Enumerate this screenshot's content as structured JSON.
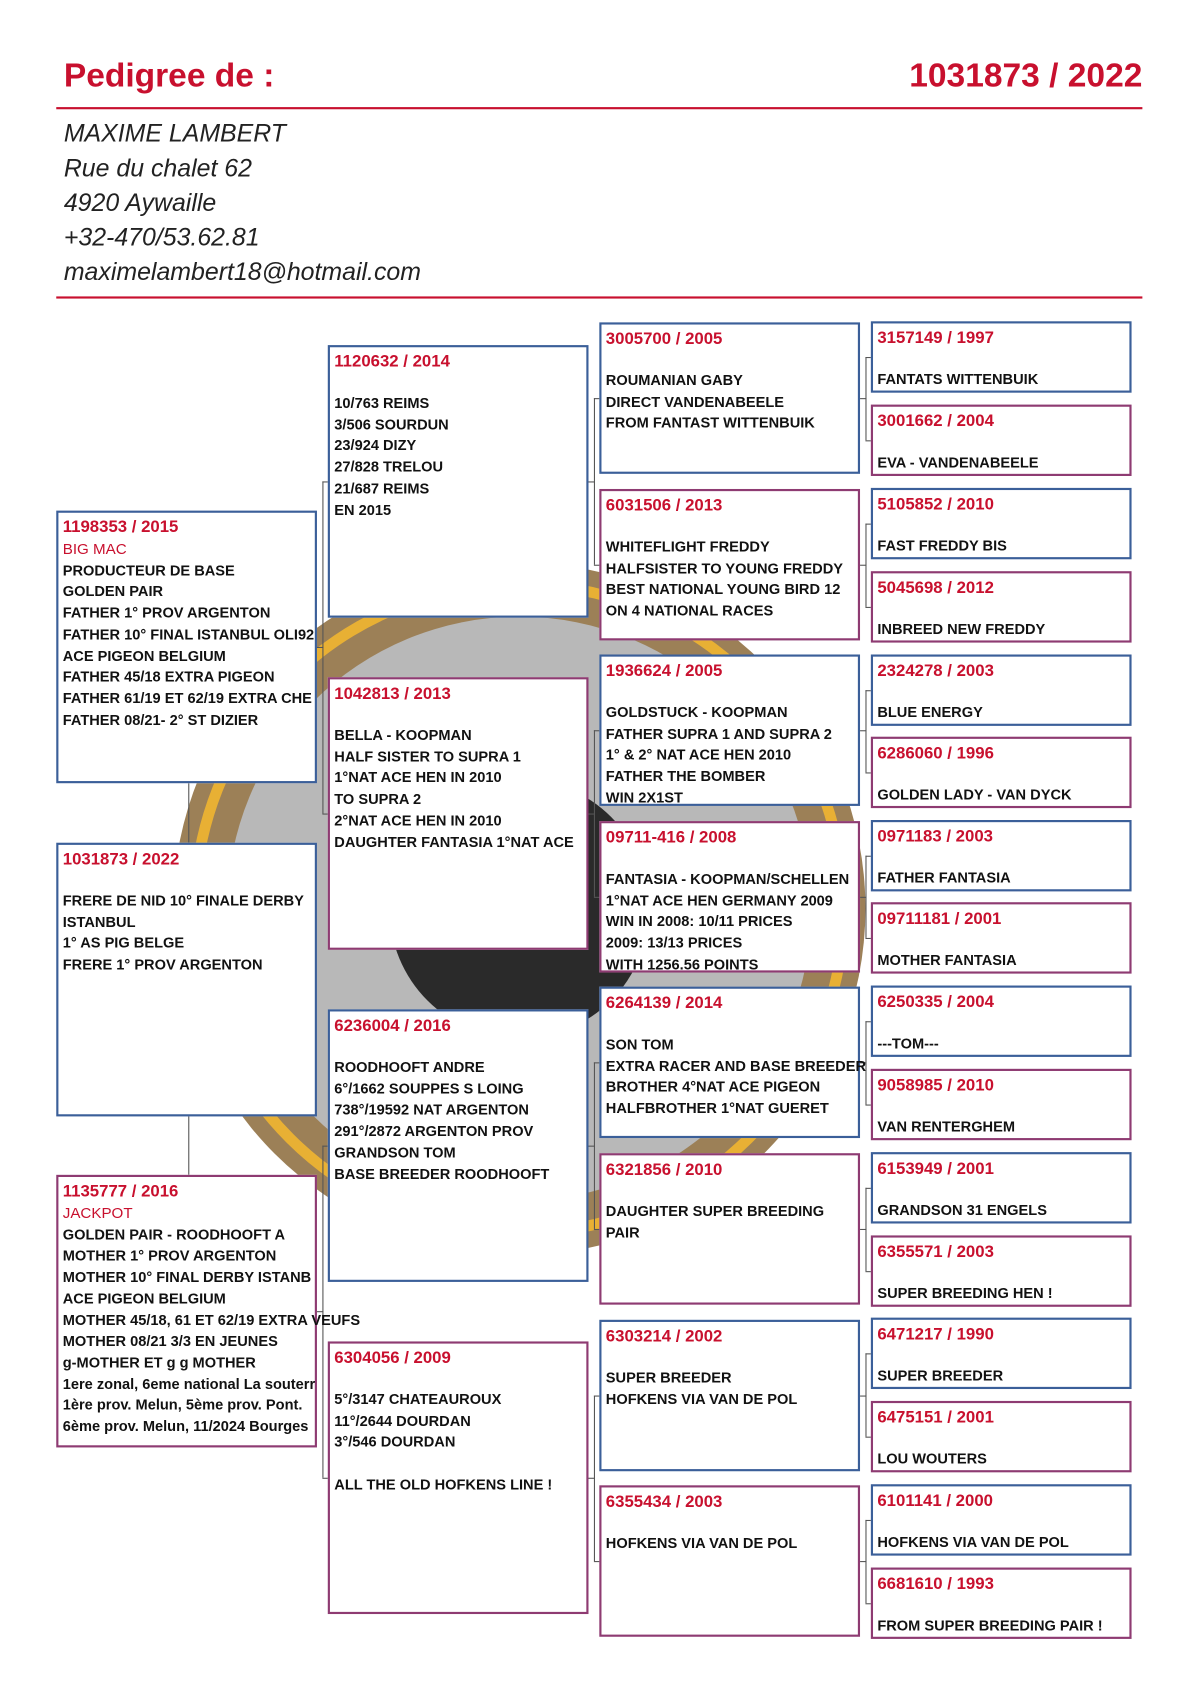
{
  "header": {
    "title": "Pedigree de :",
    "ring": "1031873 / 2022"
  },
  "owner": [
    "MAXIME LAMBERT",
    "Rue du chalet 62",
    "4920 Aywaille",
    "+32-470/53.62.81",
    "maximelambert18@hotmail.com"
  ],
  "pedigree": [
    {
      "ring": "1198353 / 2015",
      "name": "BIG MAC",
      "lines": [
        "PRODUCTEUR DE BASE",
        "GOLDEN PAIR",
        "FATHER 1° PROV ARGENTON",
        "FATHER 10° FINAL ISTANBUL OLI92",
        "ACE PIGEON BELGIUM",
        "FATHER 45/18 EXTRA PIGEON",
        "FATHER 61/19 ET 62/19 EXTRA CHE",
        "FATHER 08/21- 2° ST DIZIER"
      ]
    },
    {
      "ring": "1031873 / 2022",
      "lines": [
        "FRERE DE NID 10° FINALE DERBY",
        "ISTANBUL",
        "1° AS PIG BELGE",
        "FRERE 1° PROV ARGENTON"
      ]
    },
    {
      "ring": "1135777 / 2016",
      "name": "JACKPOT",
      "lines": [
        "GOLDEN PAIR - ROODHOOFT A",
        "MOTHER 1° PROV ARGENTON",
        "MOTHER 10° FINAL DERBY ISTANB",
        "ACE PIGEON BELGIUM",
        "MOTHER 45/18, 61 ET 62/19 EXTRA VEUFS",
        "MOTHER 08/21 3/3 EN JEUNES",
        "g-MOTHER ET g g MOTHER",
        "1ere zonal, 6eme national La souterr",
        "1ère prov. Melun, 5ème prov. Pont.",
        "6ème prov. Melun, 11/2024 Bourges"
      ]
    },
    {
      "ring": "1120632 / 2014",
      "lines": [
        "10/763 REIMS",
        "3/506 SOURDUN",
        "23/924 DIZY",
        "27/828 TRELOU",
        "21/687 REIMS",
        "EN 2015"
      ]
    },
    {
      "ring": "1042813 / 2013",
      "lines": [
        "BELLA - KOOPMAN",
        "HALF SISTER TO SUPRA 1",
        "1°NAT ACE HEN IN 2010",
        "TO SUPRA 2",
        "2°NAT ACE HEN IN 2010",
        "DAUGHTER FANTASIA 1°NAT ACE"
      ]
    },
    {
      "ring": "6236004 / 2016",
      "lines": [
        "ROODHOOFT ANDRE",
        "6°/1662 SOUPPES S LOING",
        "738°/19592 NAT ARGENTON",
        "291°/2872 ARGENTON PROV",
        "GRANDSON TOM",
        "BASE BREEDER ROODHOOFT"
      ]
    },
    {
      "ring": "6304056 / 2009",
      "lines": [
        "5°/3147 CHATEAUROUX",
        "11°/2644 DOURDAN",
        "3°/546 DOURDAN"
      ],
      "note": "ALL THE OLD HOFKENS LINE !"
    },
    {
      "ring": "3005700 / 2005",
      "lines": [
        "ROUMANIAN GABY",
        "DIRECT VANDENABEELE",
        "FROM FANTAST WITTENBUIK"
      ]
    },
    {
      "ring": "6031506 / 2013",
      "lines": [
        "WHITEFLIGHT FREDDY",
        "HALFSISTER TO YOUNG FREDDY",
        "BEST NATIONAL YOUNG BIRD 12",
        "ON 4 NATIONAL RACES"
      ]
    },
    {
      "ring": "1936624 / 2005",
      "lines": [
        "GOLDSTUCK - KOOPMAN",
        "FATHER SUPRA 1 AND SUPRA 2",
        "1° & 2° NAT ACE HEN 2010",
        "FATHER THE BOMBER",
        "WIN 2X1ST"
      ]
    },
    {
      "ring": "09711-416 / 2008",
      "lines": [
        "FANTASIA - KOOPMAN/SCHELLEN",
        "1°NAT ACE HEN GERMANY 2009",
        "WIN IN 2008: 10/11 PRICES",
        "2009: 13/13 PRICES",
        "WITH 1256.56 POINTS"
      ]
    },
    {
      "ring": "6264139 / 2014",
      "lines": [
        "SON TOM",
        "EXTRA RACER AND BASE BREEDER",
        "BROTHER 4°NAT ACE PIGEON",
        "HALFBROTHER 1°NAT GUERET"
      ]
    },
    {
      "ring": "6321856 / 2010",
      "lines": [
        "DAUGHTER SUPER BREEDING",
        "PAIR"
      ]
    },
    {
      "ring": "6303214 / 2002",
      "lines": [
        "SUPER BREEDER",
        "HOFKENS VIA VAN DE POL"
      ]
    },
    {
      "ring": "6355434 / 2003",
      "lines": [
        "HOFKENS VIA VAN DE POL"
      ]
    },
    {
      "ring": "3157149 / 1997",
      "lines": [
        "FANTATS WITTENBUIK"
      ]
    },
    {
      "ring": "3001662 / 2004",
      "lines": [
        "EVA - VANDENABEELE"
      ]
    },
    {
      "ring": "5105852 / 2010",
      "lines": [
        "FAST FREDDY BIS"
      ]
    },
    {
      "ring": "5045698 / 2012",
      "lines": [
        "INBREED NEW FREDDY"
      ]
    },
    {
      "ring": "2324278 / 2003",
      "lines": [
        "BLUE ENERGY"
      ]
    },
    {
      "ring": "6286060 / 1996",
      "lines": [
        "GOLDEN LADY - VAN DYCK"
      ]
    },
    {
      "ring": "0971183 / 2003",
      "lines": [
        "FATHER FANTASIA"
      ]
    },
    {
      "ring": "09711181 / 2001",
      "lines": [
        "MOTHER FANTASIA"
      ]
    },
    {
      "ring": "6250335 / 2004",
      "lines": [
        "---TOM---"
      ]
    },
    {
      "ring": "9058985 / 2010",
      "lines": [
        "VAN RENTERGHEM"
      ]
    },
    {
      "ring": "6153949 / 2001",
      "lines": [
        "GRANDSON 31 ENGELS"
      ]
    },
    {
      "ring": "6355571 / 2003",
      "lines": [
        "SUPER BREEDING HEN !"
      ]
    },
    {
      "ring": "6471217 / 1990",
      "lines": [
        "SUPER BREEDER"
      ]
    },
    {
      "ring": "6475151 / 2001",
      "lines": [
        "LOU WOUTERS"
      ]
    },
    {
      "ring": "6101141 / 2000",
      "lines": [
        "HOFKENS VIA VAN DE POL"
      ]
    },
    {
      "ring": "6681610 / 1993",
      "lines": [
        "FROM SUPER BREEDING PAIR !"
      ]
    }
  ]
}
